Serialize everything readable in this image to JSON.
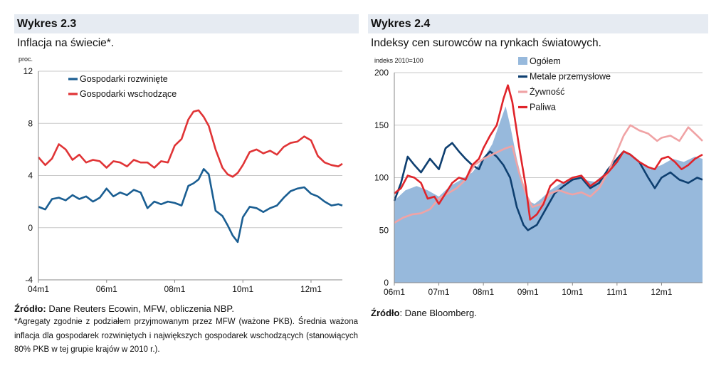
{
  "left": {
    "title": "Wykres 2.3",
    "subtitle": "Inflacja na świecie*.",
    "source_label": "Źródło:",
    "source_text": " Dane Reuters Ecowin, MFW, obliczenia NBP.",
    "note": "*Agregaty zgodnie z podziałem przyjmowanym przez MFW (ważone PKB). Średnia ważona inflacja dla gospodarek rozwiniętych i największych gospodarek wschodzących (stanowiących 80% PKB w tej grupie krajów w 2010 r.).",
    "chart_data": {
      "type": "line",
      "ylabel": "proc.",
      "ylim": [
        -4,
        12
      ],
      "yticks": [
        -4,
        0,
        4,
        8,
        12
      ],
      "xlim": [
        2004.0,
        2012.92
      ],
      "xticks": [
        {
          "label": "04m1",
          "value": 2004.0
        },
        {
          "label": "06m1",
          "value": 2006.0
        },
        {
          "label": "08m1",
          "value": 2008.0
        },
        {
          "label": "10m1",
          "value": 2010.0
        },
        {
          "label": "12m1",
          "value": 2012.0
        }
      ],
      "legend_position": "top-left",
      "series": [
        {
          "name": "Gospodarki rozwinięte",
          "color": "#1a5e92",
          "x": [
            2004.0,
            2004.2,
            2004.4,
            2004.6,
            2004.8,
            2005.0,
            2005.2,
            2005.4,
            2005.6,
            2005.8,
            2006.0,
            2006.2,
            2006.4,
            2006.6,
            2006.8,
            2007.0,
            2007.2,
            2007.4,
            2007.6,
            2007.8,
            2008.0,
            2008.2,
            2008.4,
            2008.55,
            2008.7,
            2008.85,
            2009.0,
            2009.2,
            2009.4,
            2009.55,
            2009.7,
            2009.85,
            2010.0,
            2010.2,
            2010.4,
            2010.6,
            2010.8,
            2011.0,
            2011.2,
            2011.4,
            2011.6,
            2011.8,
            2012.0,
            2012.2,
            2012.4,
            2012.6,
            2012.8,
            2012.92
          ],
          "values": [
            1.6,
            1.4,
            2.2,
            2.3,
            2.1,
            2.5,
            2.2,
            2.4,
            2.0,
            2.3,
            3.0,
            2.4,
            2.7,
            2.5,
            2.9,
            2.7,
            1.5,
            2.0,
            1.8,
            2.0,
            1.9,
            1.7,
            3.2,
            3.4,
            3.7,
            4.5,
            4.1,
            1.3,
            0.9,
            0.2,
            -0.6,
            -1.1,
            0.8,
            1.6,
            1.5,
            1.2,
            1.5,
            1.7,
            2.3,
            2.8,
            3.0,
            3.1,
            2.6,
            2.4,
            2.0,
            1.7,
            1.8,
            1.7
          ]
        },
        {
          "name": "Gospodarki wschodzące",
          "color": "#e03436",
          "x": [
            2004.0,
            2004.2,
            2004.4,
            2004.6,
            2004.8,
            2005.0,
            2005.2,
            2005.4,
            2005.6,
            2005.8,
            2006.0,
            2006.2,
            2006.4,
            2006.6,
            2006.8,
            2007.0,
            2007.2,
            2007.4,
            2007.6,
            2007.8,
            2008.0,
            2008.2,
            2008.4,
            2008.55,
            2008.7,
            2008.85,
            2009.0,
            2009.2,
            2009.4,
            2009.55,
            2009.7,
            2009.85,
            2010.0,
            2010.2,
            2010.4,
            2010.6,
            2010.8,
            2011.0,
            2011.2,
            2011.4,
            2011.6,
            2011.8,
            2012.0,
            2012.2,
            2012.4,
            2012.6,
            2012.8,
            2012.92
          ],
          "values": [
            5.4,
            4.8,
            5.3,
            6.4,
            6.0,
            5.2,
            5.6,
            5.0,
            5.2,
            5.1,
            4.6,
            5.1,
            5.0,
            4.7,
            5.2,
            5.0,
            5.0,
            4.6,
            5.1,
            5.0,
            6.3,
            6.8,
            8.3,
            8.9,
            9.0,
            8.5,
            7.8,
            6.0,
            4.6,
            4.1,
            3.9,
            4.2,
            4.8,
            5.8,
            6.0,
            5.7,
            5.9,
            5.6,
            6.2,
            6.5,
            6.6,
            7.0,
            6.7,
            5.5,
            5.0,
            4.8,
            4.7,
            4.9
          ]
        }
      ]
    }
  },
  "right": {
    "title": "Wykres 2.4",
    "subtitle": "Indeksy cen surowców na rynkach światowych.",
    "source_label": "Źródło",
    "source_text": ": Dane Bloomberg.",
    "chart_data": {
      "type": "area",
      "ylabel": "indeks 2010=100",
      "ylim": [
        0,
        200
      ],
      "yticks": [
        0,
        50,
        100,
        150,
        200
      ],
      "xlim": [
        2006.0,
        2012.92
      ],
      "xticks": [
        {
          "label": "06m1",
          "value": 2006.0
        },
        {
          "label": "07m1",
          "value": 2007.0
        },
        {
          "label": "08m1",
          "value": 2008.0
        },
        {
          "label": "09m1",
          "value": 2009.0
        },
        {
          "label": "10m1",
          "value": 2010.0
        },
        {
          "label": "11m1",
          "value": 2011.0
        },
        {
          "label": "12m1",
          "value": 2012.0
        }
      ],
      "legend_position": "top-center",
      "series": [
        {
          "name": "Ogółem",
          "kind": "area",
          "color": "#97b9dc",
          "x": [
            2006.0,
            2006.25,
            2006.5,
            2006.75,
            2007.0,
            2007.25,
            2007.5,
            2007.75,
            2008.0,
            2008.2,
            2008.35,
            2008.5,
            2008.6,
            2008.75,
            2008.9,
            2009.0,
            2009.15,
            2009.3,
            2009.5,
            2009.75,
            2010.0,
            2010.25,
            2010.5,
            2010.75,
            2011.0,
            2011.15,
            2011.3,
            2011.5,
            2011.75,
            2012.0,
            2012.25,
            2012.5,
            2012.75,
            2012.92
          ],
          "values": [
            78,
            88,
            92,
            88,
            82,
            92,
            98,
            105,
            118,
            132,
            150,
            168,
            150,
            118,
            92,
            78,
            75,
            80,
            88,
            95,
            100,
            98,
            96,
            105,
            118,
            125,
            122,
            115,
            108,
            112,
            118,
            115,
            120,
            118
          ]
        },
        {
          "name": "Metale przemysłowe",
          "kind": "line",
          "color": "#0e3f70",
          "x": [
            2006.0,
            2006.15,
            2006.3,
            2006.45,
            2006.6,
            2006.8,
            2007.0,
            2007.15,
            2007.3,
            2007.45,
            2007.6,
            2007.75,
            2007.9,
            2008.0,
            2008.15,
            2008.3,
            2008.45,
            2008.6,
            2008.75,
            2008.9,
            2009.0,
            2009.2,
            2009.4,
            2009.6,
            2009.8,
            2010.0,
            2010.2,
            2010.4,
            2010.6,
            2010.8,
            2011.0,
            2011.15,
            2011.3,
            2011.5,
            2011.7,
            2011.85,
            2012.0,
            2012.2,
            2012.4,
            2012.6,
            2012.8,
            2012.92
          ],
          "values": [
            78,
            95,
            120,
            112,
            105,
            118,
            108,
            128,
            133,
            125,
            118,
            112,
            108,
            118,
            125,
            120,
            112,
            100,
            72,
            55,
            50,
            55,
            70,
            85,
            92,
            98,
            100,
            90,
            95,
            108,
            118,
            125,
            122,
            115,
            100,
            90,
            100,
            105,
            98,
            95,
            100,
            98
          ]
        },
        {
          "name": "Żywność",
          "kind": "line",
          "color": "#f0a3a5",
          "x": [
            2006.0,
            2006.2,
            2006.4,
            2006.6,
            2006.8,
            2007.0,
            2007.2,
            2007.4,
            2007.6,
            2007.8,
            2008.0,
            2008.2,
            2008.35,
            2008.5,
            2008.65,
            2008.8,
            2008.95,
            2009.1,
            2009.3,
            2009.5,
            2009.7,
            2009.9,
            2010.0,
            2010.2,
            2010.4,
            2010.6,
            2010.8,
            2011.0,
            2011.15,
            2011.3,
            2011.5,
            2011.7,
            2011.9,
            2012.0,
            2012.2,
            2012.4,
            2012.6,
            2012.8,
            2012.92
          ],
          "values": [
            57,
            62,
            65,
            66,
            70,
            80,
            85,
            90,
            98,
            112,
            118,
            122,
            125,
            128,
            130,
            105,
            85,
            72,
            75,
            85,
            88,
            85,
            84,
            86,
            82,
            90,
            105,
            125,
            140,
            150,
            145,
            142,
            135,
            138,
            140,
            135,
            148,
            140,
            135
          ]
        },
        {
          "name": "Paliwa",
          "kind": "line",
          "color": "#e0242a",
          "x": [
            2006.0,
            2006.15,
            2006.3,
            2006.45,
            2006.6,
            2006.75,
            2006.9,
            2007.0,
            2007.15,
            2007.3,
            2007.45,
            2007.6,
            2007.75,
            2007.9,
            2008.0,
            2008.15,
            2008.3,
            2008.45,
            2008.55,
            2008.65,
            2008.8,
            2008.95,
            2009.05,
            2009.2,
            2009.35,
            2009.5,
            2009.65,
            2009.8,
            2010.0,
            2010.2,
            2010.4,
            2010.6,
            2010.8,
            2011.0,
            2011.15,
            2011.3,
            2011.5,
            2011.7,
            2011.85,
            2012.0,
            2012.15,
            2012.3,
            2012.45,
            2012.6,
            2012.75,
            2012.92
          ],
          "values": [
            85,
            90,
            102,
            100,
            95,
            80,
            82,
            75,
            85,
            95,
            100,
            98,
            112,
            118,
            128,
            140,
            150,
            175,
            188,
            172,
            130,
            92,
            60,
            65,
            75,
            92,
            98,
            95,
            100,
            102,
            92,
            98,
            105,
            115,
            125,
            122,
            115,
            110,
            108,
            118,
            120,
            115,
            108,
            112,
            118,
            122
          ]
        }
      ]
    }
  }
}
